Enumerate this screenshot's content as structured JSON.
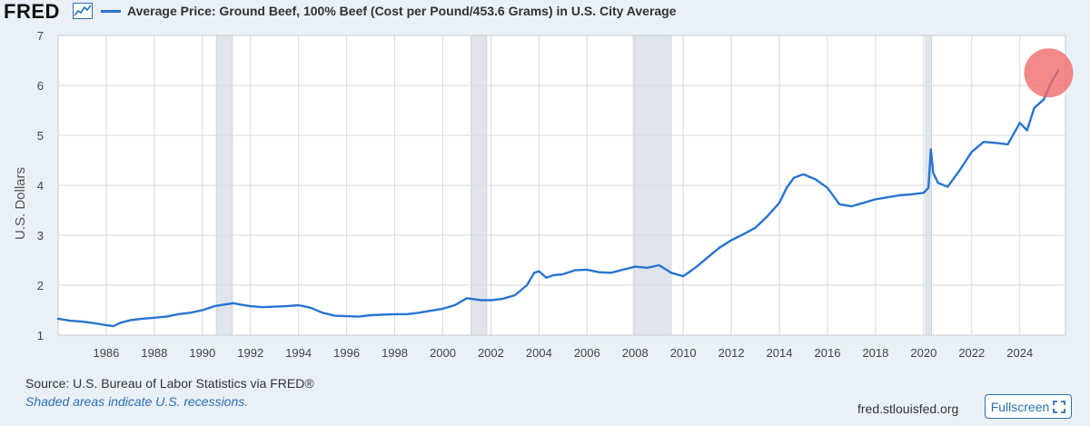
{
  "header": {
    "logo_text": "FRED",
    "legend_label": "Average Price: Ground Beef, 100% Beef (Cost per Pound/453.6 Grams) in U.S. City Average"
  },
  "footer": {
    "source": "Source: U.S. Bureau of Labor Statistics via FRED®",
    "note": "Shaded areas indicate U.S. recessions.",
    "site": "fred.stlouisfed.org",
    "fullscreen_label": "Fullscreen"
  },
  "colors": {
    "line": "#2874d2",
    "recession": "#dfe5eb",
    "highlight": "#f06b6b"
  },
  "icons": [
    "fred-graph-icon",
    "fullscreen-icon"
  ],
  "chart_data": {
    "type": "line",
    "title": "",
    "xlabel": "",
    "ylabel": "U.S. Dollars",
    "xlim": [
      1984.0,
      2025.9
    ],
    "ylim": [
      1,
      7
    ],
    "yticks": [
      1,
      2,
      3,
      4,
      5,
      6,
      7
    ],
    "xticks": [
      1986,
      1988,
      1990,
      1992,
      1994,
      1996,
      1998,
      2000,
      2002,
      2004,
      2006,
      2008,
      2010,
      2012,
      2014,
      2016,
      2018,
      2020,
      2022,
      2024
    ],
    "grid": true,
    "recessions": [
      [
        1990.58,
        1991.25
      ],
      [
        2001.17,
        2001.83
      ],
      [
        2007.92,
        2009.5
      ],
      [
        2020.08,
        2020.33
      ]
    ],
    "highlight": {
      "x": 2025.2,
      "y": 6.25
    },
    "series": [
      {
        "name": "Average Price: Ground Beef, 100% Beef (Cost per Pound/453.6 Grams) in U.S. City Average",
        "x": [
          1984.0,
          1984.5,
          1985.0,
          1985.5,
          1986.0,
          1986.3,
          1986.6,
          1987.0,
          1987.5,
          1988.0,
          1988.5,
          1989.0,
          1989.5,
          1990.0,
          1990.5,
          1991.0,
          1991.3,
          1991.6,
          1992.0,
          1992.5,
          1993.0,
          1993.5,
          1994.0,
          1994.5,
          1995.0,
          1995.5,
          1996.0,
          1996.5,
          1997.0,
          1997.5,
          1998.0,
          1998.5,
          1999.0,
          1999.5,
          2000.0,
          2000.5,
          2001.0,
          2001.3,
          2001.6,
          2002.0,
          2002.5,
          2003.0,
          2003.5,
          2003.8,
          2004.0,
          2004.3,
          2004.6,
          2005.0,
          2005.5,
          2006.0,
          2006.5,
          2007.0,
          2007.5,
          2008.0,
          2008.5,
          2009.0,
          2009.5,
          2010.0,
          2010.5,
          2011.0,
          2011.5,
          2012.0,
          2012.5,
          2013.0,
          2013.5,
          2014.0,
          2014.3,
          2014.6,
          2015.0,
          2015.5,
          2016.0,
          2016.5,
          2017.0,
          2017.5,
          2018.0,
          2018.5,
          2019.0,
          2019.5,
          2020.0,
          2020.2,
          2020.3,
          2020.4,
          2020.6,
          2021.0,
          2021.5,
          2022.0,
          2022.5,
          2023.0,
          2023.5,
          2024.0,
          2024.3,
          2024.6,
          2025.0,
          2025.3,
          2025.6
        ],
        "values": [
          1.33,
          1.29,
          1.27,
          1.24,
          1.2,
          1.18,
          1.25,
          1.3,
          1.33,
          1.35,
          1.37,
          1.42,
          1.45,
          1.5,
          1.58,
          1.62,
          1.64,
          1.61,
          1.58,
          1.56,
          1.57,
          1.58,
          1.6,
          1.55,
          1.45,
          1.39,
          1.38,
          1.37,
          1.4,
          1.41,
          1.42,
          1.42,
          1.45,
          1.49,
          1.53,
          1.6,
          1.74,
          1.72,
          1.7,
          1.7,
          1.73,
          1.8,
          2.0,
          2.25,
          2.28,
          2.15,
          2.2,
          2.22,
          2.3,
          2.31,
          2.26,
          2.25,
          2.31,
          2.37,
          2.35,
          2.4,
          2.25,
          2.18,
          2.35,
          2.55,
          2.75,
          2.9,
          3.02,
          3.15,
          3.38,
          3.65,
          3.95,
          4.15,
          4.22,
          4.12,
          3.95,
          3.62,
          3.58,
          3.65,
          3.72,
          3.76,
          3.8,
          3.82,
          3.85,
          3.95,
          4.72,
          4.25,
          4.05,
          3.97,
          4.3,
          4.67,
          4.87,
          4.85,
          4.82,
          5.25,
          5.1,
          5.55,
          5.72,
          6.05,
          6.3
        ]
      }
    ]
  }
}
